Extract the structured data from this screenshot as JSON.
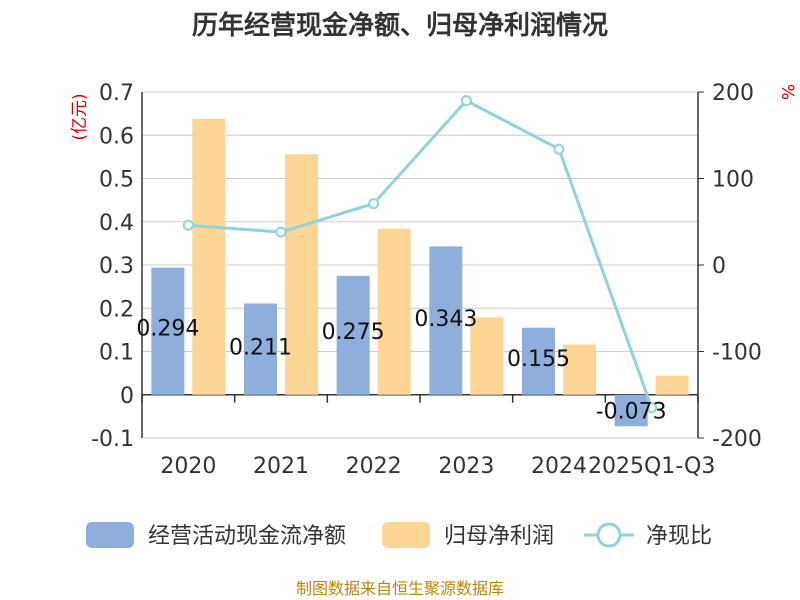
{
  "title": "历年经营现金净额、归母净利润情况",
  "source": "制图数据来自恒生聚源数据库",
  "colors": {
    "cash": "#8eaedb",
    "profit": "#fdd594",
    "ratio": "#8fd3db",
    "grid": "#cccccc",
    "axis": "#333333",
    "unit": "#cc0000"
  },
  "chart_data": {
    "type": "bar",
    "categories": [
      "2020",
      "2021",
      "2022",
      "2023",
      "2024",
      "2025Q1-Q3"
    ],
    "left_unit": "(亿元)",
    "right_unit": "%",
    "left_ticks": [
      "-0.1",
      "0",
      "0.1",
      "0.2",
      "0.3",
      "0.4",
      "0.5",
      "0.6",
      "0.7"
    ],
    "right_ticks": [
      "-200",
      "-100",
      "0",
      "100",
      "200"
    ],
    "ylim": [
      -0.1,
      0.7
    ],
    "y2lim": [
      -200,
      200
    ],
    "grid": true,
    "legend_position": "bottom",
    "series": [
      {
        "name": "经营活动现金流净额",
        "axis": "left",
        "kind": "bar",
        "values": [
          0.294,
          0.211,
          0.275,
          0.343,
          0.155,
          -0.073
        ],
        "labels": [
          "0.294",
          "0.211",
          "0.275",
          "0.343",
          "0.155",
          "-0.073"
        ]
      },
      {
        "name": "归母净利润",
        "axis": "left",
        "kind": "bar",
        "values": [
          0.638,
          0.556,
          0.384,
          0.179,
          0.116,
          0.044
        ]
      },
      {
        "name": "净现比",
        "axis": "right",
        "kind": "line",
        "values": [
          46,
          38,
          71,
          190,
          134,
          -165
        ]
      }
    ]
  }
}
